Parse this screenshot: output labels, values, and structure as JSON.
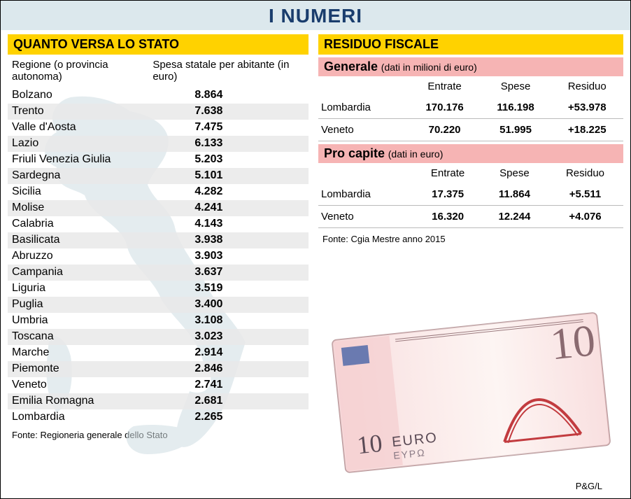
{
  "title": "I NUMERI",
  "left": {
    "header": "QUANTO VERSA LO STATO",
    "col1": "Regione (o provincia autonoma)",
    "col2": "Spesa statale per abitante (in euro)",
    "rows": [
      {
        "region": "Bolzano",
        "value": "8.864"
      },
      {
        "region": "Trento",
        "value": "7.638"
      },
      {
        "region": "Valle d'Aosta",
        "value": "7.475"
      },
      {
        "region": "Lazio",
        "value": "6.133"
      },
      {
        "region": "Friuli Venezia Giulia",
        "value": "5.203"
      },
      {
        "region": "Sardegna",
        "value": "5.101"
      },
      {
        "region": "Sicilia",
        "value": "4.282"
      },
      {
        "region": "Molise",
        "value": "4.241"
      },
      {
        "region": "Calabria",
        "value": "4.143"
      },
      {
        "region": "Basilicata",
        "value": "3.938"
      },
      {
        "region": "Abruzzo",
        "value": "3.903"
      },
      {
        "region": "Campania",
        "value": "3.637"
      },
      {
        "region": "Liguria",
        "value": "3.519"
      },
      {
        "region": "Puglia",
        "value": "3.400"
      },
      {
        "region": "Umbria",
        "value": "3.108"
      },
      {
        "region": "Toscana",
        "value": "3.023"
      },
      {
        "region": "Marche",
        "value": "2.914"
      },
      {
        "region": "Piemonte",
        "value": "2.846"
      },
      {
        "region": "Veneto",
        "value": "2.741"
      },
      {
        "region": "Emilia Romagna",
        "value": "2.681"
      },
      {
        "region": "Lombardia",
        "value": "2.265"
      }
    ],
    "source": "Fonte: Regioneria generale dello Stato"
  },
  "right": {
    "header": "RESIDUO FISCALE",
    "generale": {
      "title": "Generale",
      "paren": "(dati in milioni di euro)",
      "cols": [
        "",
        "Entrate",
        "Spese",
        "Residuo"
      ],
      "rows": [
        {
          "label": "Lombardia",
          "entrate": "170.176",
          "spese": "116.198",
          "residuo": "+53.978"
        },
        {
          "label": "Veneto",
          "entrate": "70.220",
          "spese": "51.995",
          "residuo": "+18.225"
        }
      ]
    },
    "procapite": {
      "title": "Pro capite",
      "paren": "(dati in euro)",
      "cols": [
        "",
        "Entrate",
        "Spese",
        "Residuo"
      ],
      "rows": [
        {
          "label": "Lombardia",
          "entrate": "17.375",
          "spese": "11.864",
          "residuo": "+5.511"
        },
        {
          "label": "Veneto",
          "entrate": "16.320",
          "spese": "12.244",
          "residuo": "+4.076"
        }
      ]
    },
    "source": "Fonte: Cgia Mestre anno 2015"
  },
  "credit": "P&G/L",
  "colors": {
    "title_bg": "#dce8ed",
    "title_fg": "#1a3d6d",
    "yellow": "#ffd200",
    "pink": "#f6b4b4",
    "alt_row": "#e9e9e9",
    "italy_fill": "#cfdde2",
    "note_pink": "#f4c9cc",
    "note_red": "#c23b3f",
    "note_border": "#b89a9c"
  }
}
